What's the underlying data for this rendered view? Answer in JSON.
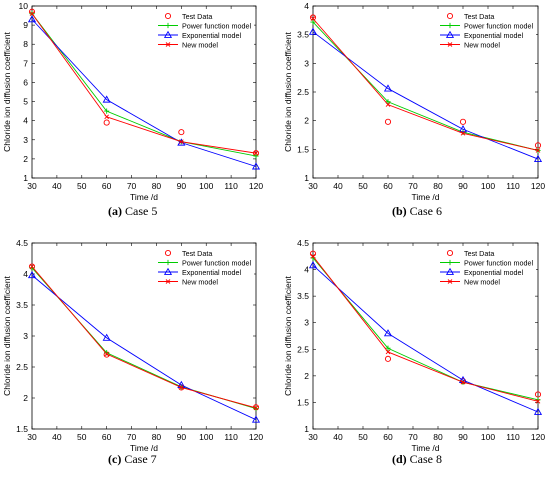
{
  "colors": {
    "test": "#ff0000",
    "power": "#00cc00",
    "exp": "#0000ff",
    "new": "#ff0000"
  },
  "chart_data": [
    {
      "type": "line",
      "xlabel": "Time /d",
      "ylabel": "Chloride ion diffusion coefficient",
      "caption_label": "(a)",
      "caption_text": " Case 5",
      "xlim": [
        30,
        120
      ],
      "ylim": [
        1,
        10
      ],
      "xticks": [
        "30",
        "40",
        "50",
        "60",
        "70",
        "80",
        "90",
        "100",
        "110",
        "120"
      ],
      "yticks": [
        "1",
        "2",
        "3",
        "4",
        "5",
        "6",
        "7",
        "8",
        "9",
        "10"
      ],
      "legend": [
        "Test Data",
        "Power function model",
        "Exponential model",
        "New model"
      ],
      "legend_position": "top-right",
      "x": [
        30,
        60,
        90,
        120
      ],
      "series": [
        {
          "name": "Test Data",
          "values": [
            9.7,
            3.9,
            3.4,
            2.3
          ]
        },
        {
          "name": "Power function model",
          "values": [
            9.6,
            4.5,
            2.9,
            2.15
          ]
        },
        {
          "name": "Exponential model",
          "values": [
            9.3,
            5.1,
            2.85,
            1.6
          ]
        },
        {
          "name": "New model",
          "values": [
            9.6,
            4.2,
            2.9,
            2.3
          ]
        }
      ]
    },
    {
      "type": "line",
      "xlabel": "Time /d",
      "ylabel": "Chloride ion diffusion coefficient",
      "caption_label": "(b)",
      "caption_text": " Case 6",
      "xlim": [
        30,
        120
      ],
      "ylim": [
        1,
        4
      ],
      "xticks": [
        "30",
        "40",
        "50",
        "60",
        "70",
        "80",
        "90",
        "100",
        "110",
        "120"
      ],
      "yticks": [
        "1",
        "1.5",
        "2",
        "2.5",
        "3",
        "3.5",
        "4"
      ],
      "legend": [
        "Test Data",
        "Power function model",
        "Exponential model",
        "New model"
      ],
      "legend_position": "top-right",
      "x": [
        30,
        60,
        90,
        120
      ],
      "series": [
        {
          "name": "Test Data",
          "values": [
            3.8,
            1.98,
            1.98,
            1.57
          ]
        },
        {
          "name": "Power function model",
          "values": [
            3.72,
            2.33,
            1.8,
            1.48
          ]
        },
        {
          "name": "Exponential model",
          "values": [
            3.55,
            2.56,
            1.85,
            1.33
          ]
        },
        {
          "name": "New model",
          "values": [
            3.78,
            2.28,
            1.78,
            1.48
          ]
        }
      ]
    },
    {
      "type": "line",
      "xlabel": "Time /d",
      "ylabel": "Chloride ion diffusion coefficient",
      "caption_label": "(c)",
      "caption_text": " Case 7",
      "xlim": [
        30,
        120
      ],
      "ylim": [
        1.5,
        4.5
      ],
      "xticks": [
        "30",
        "40",
        "50",
        "60",
        "70",
        "80",
        "90",
        "100",
        "110",
        "120"
      ],
      "yticks": [
        "1.5",
        "2",
        "2.5",
        "3",
        "3.5",
        "4",
        "4.5"
      ],
      "legend": [
        "Test Data",
        "Power function model",
        "Exponential model",
        "New model"
      ],
      "legend_position": "top-right",
      "x": [
        30,
        60,
        90,
        120
      ],
      "series": [
        {
          "name": "Test Data",
          "values": [
            4.12,
            2.7,
            2.17,
            1.85
          ]
        },
        {
          "name": "Power function model",
          "values": [
            4.1,
            2.73,
            2.18,
            1.83
          ]
        },
        {
          "name": "Exponential model",
          "values": [
            3.98,
            2.97,
            2.21,
            1.65
          ]
        },
        {
          "name": "New model",
          "values": [
            4.12,
            2.71,
            2.17,
            1.84
          ]
        }
      ]
    },
    {
      "type": "line",
      "xlabel": "Time /d",
      "ylabel": "Chloride ion diffusion coefficient",
      "caption_label": "(d)",
      "caption_text": " Case 8",
      "xlim": [
        30,
        120
      ],
      "ylim": [
        1,
        4.5
      ],
      "xticks": [
        "30",
        "40",
        "50",
        "60",
        "70",
        "80",
        "90",
        "100",
        "110",
        "120"
      ],
      "yticks": [
        "1",
        "1.5",
        "2",
        "2.5",
        "3",
        "3.5",
        "4",
        "4.5"
      ],
      "legend": [
        "Test Data",
        "Power function model",
        "Exponential model",
        "New model"
      ],
      "legend_position": "top-right",
      "x": [
        30,
        60,
        90,
        120
      ],
      "series": [
        {
          "name": "Test Data",
          "values": [
            4.3,
            2.32,
            1.9,
            1.65
          ]
        },
        {
          "name": "Power function model",
          "values": [
            4.22,
            2.52,
            1.88,
            1.55
          ]
        },
        {
          "name": "Exponential model",
          "values": [
            4.08,
            2.8,
            1.92,
            1.32
          ]
        },
        {
          "name": "New model",
          "values": [
            4.25,
            2.45,
            1.88,
            1.52
          ]
        }
      ]
    }
  ]
}
